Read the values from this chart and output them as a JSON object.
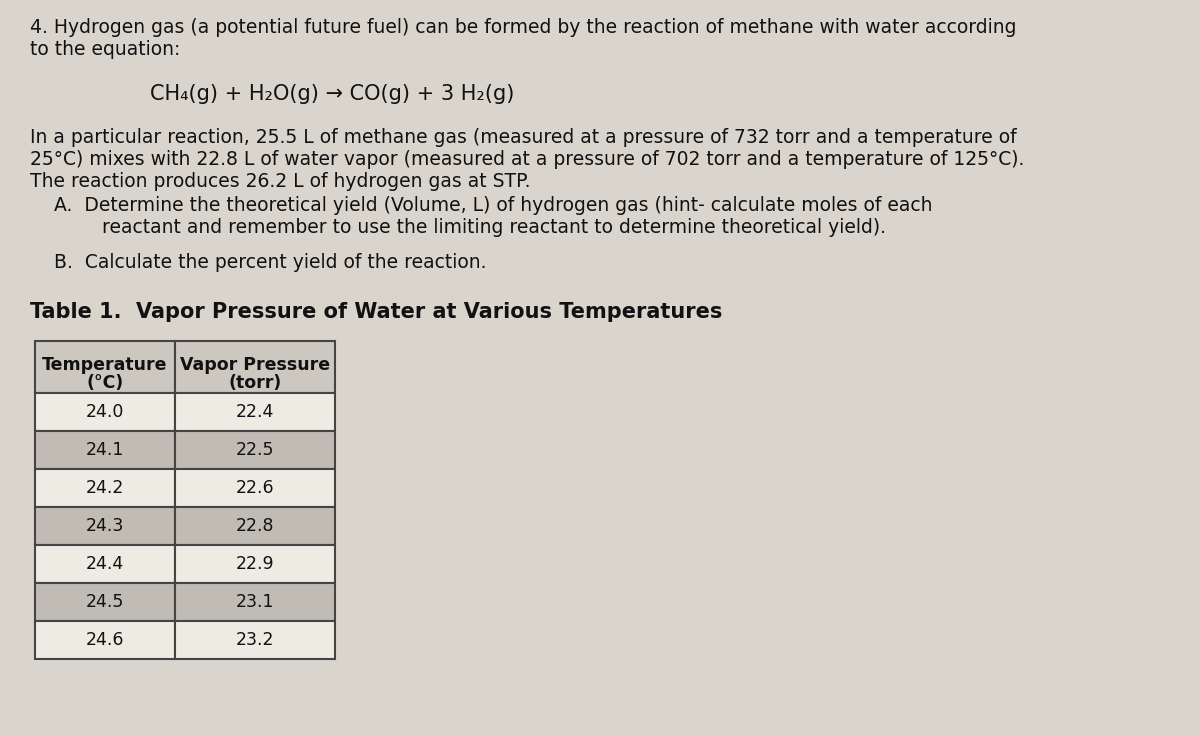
{
  "background_color": "#d9d5cd",
  "text_color": "#111111",
  "intro_line1": "4. Hydrogen gas (a potential future fuel) can be formed by the reaction of methane with water according",
  "intro_line2": "to the equation:",
  "equation": "CH₄(g) + H₂O(g) → CO(g) + 3 H₂(g)",
  "body_line1": "In a particular reaction, 25.5 L of methane gas (measured at a pressure of 732 torr and a temperature of",
  "body_line2": "25°C) mixes with 22.8 L of water vapor (measured at a pressure of 702 torr and a temperature of 125°C).",
  "body_line3": "The reaction produces 26.2 L of hydrogen gas at STP.",
  "partA_line1": "    A.  Determine the theoretical yield (Volume, L) of hydrogen gas (hint- calculate moles of each",
  "partA_line2": "            reactant and remember to use the limiting reactant to determine theoretical yield).",
  "partB": "    B.  Calculate the percent yield of the reaction.",
  "table_title": "Table 1.  Vapor Pressure of Water at Various Temperatures",
  "table_col1_header_line1": "Temperature",
  "table_col1_header_line2": "(°C)",
  "table_col2_header_line1": "Vapor Pressure",
  "table_col2_header_line2": "(torr)",
  "table_data": [
    [
      "24.0",
      "22.4"
    ],
    [
      "24.1",
      "22.5"
    ],
    [
      "24.2",
      "22.6"
    ],
    [
      "24.3",
      "22.8"
    ],
    [
      "24.4",
      "22.9"
    ],
    [
      "24.5",
      "23.1"
    ],
    [
      "24.6",
      "23.2"
    ]
  ],
  "row_color_light": "#eeebe3",
  "row_color_dark": "#c0bcb4",
  "header_color": "#ccc8c0",
  "table_border_color": "#444444",
  "font_size_body": 13.5,
  "font_size_equation": 15,
  "font_size_table_title": 15,
  "font_size_table_header": 12.5,
  "font_size_table_body": 12.5
}
